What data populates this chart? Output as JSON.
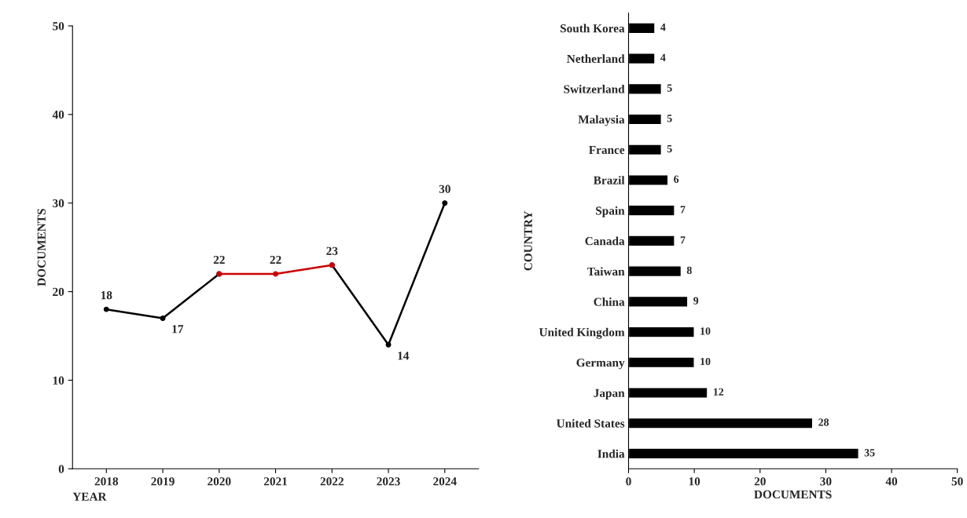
{
  "chart_data": [
    {
      "type": "line",
      "xlabel": "YEAR",
      "ylabel": "DOCUMENTS",
      "categories": [
        "2018",
        "2019",
        "2020",
        "2021",
        "2022",
        "2023",
        "2024"
      ],
      "ylim": [
        0,
        50
      ],
      "yticks": [
        0,
        10,
        20,
        30,
        40,
        50
      ],
      "grid": false,
      "marker": "circle",
      "line_style": "solid",
      "series": [
        {
          "color": "#000000",
          "values": [
            18,
            17,
            22,
            null,
            23,
            14,
            30
          ],
          "value_labels": [
            "18",
            "17",
            null,
            null,
            null,
            "14",
            "30"
          ]
        },
        {
          "color": "#cc0000",
          "values": [
            null,
            null,
            22,
            22,
            23,
            null,
            null
          ],
          "value_labels": [
            null,
            null,
            "22",
            "22",
            "23",
            null,
            null
          ]
        }
      ]
    },
    {
      "type": "bar",
      "orientation": "horizontal",
      "xlabel": "DOCUMENTS",
      "ylabel": "COUNTRY",
      "categories": [
        "South Korea",
        "Netherland",
        "Switzerland",
        "Malaysia",
        "France",
        "Brazil",
        "Spain",
        "Canada",
        "Taiwan",
        "China",
        "United Kingdom",
        "Germany",
        "Japan",
        "United States",
        "India"
      ],
      "values": [
        4,
        4,
        5,
        5,
        5,
        6,
        7,
        7,
        8,
        9,
        10,
        10,
        12,
        28,
        35
      ],
      "color": "#000000",
      "xlim": [
        0,
        50
      ],
      "xticks": [
        0,
        10,
        20,
        30,
        40,
        50
      ],
      "grid": false,
      "data_labels": true
    }
  ]
}
